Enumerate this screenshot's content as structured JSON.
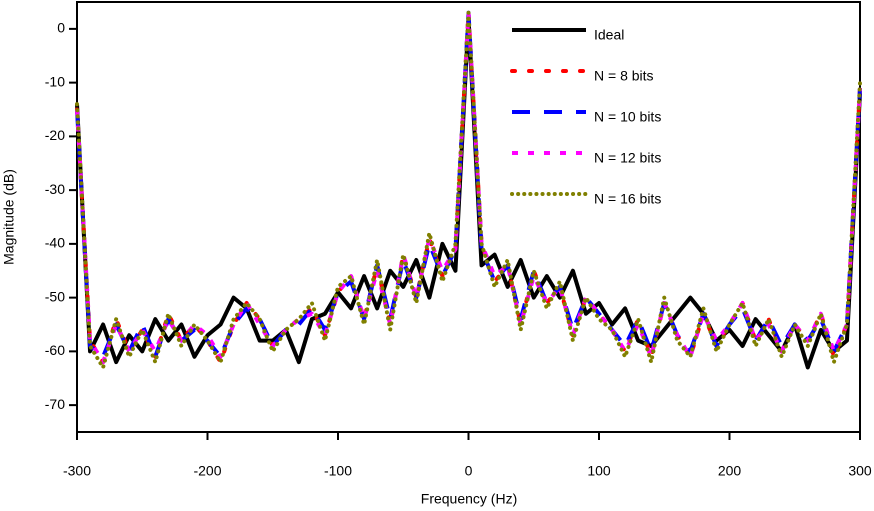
{
  "chart_data": {
    "type": "line",
    "xlabel": "Frequency (Hz)",
    "ylabel": "Magnitude (dB)",
    "x": [
      -300,
      -290,
      -280,
      -270,
      -260,
      -250,
      -240,
      -230,
      -220,
      -210,
      -200,
      -190,
      -180,
      -170,
      -160,
      -150,
      -140,
      -130,
      -120,
      -110,
      -100,
      -90,
      -80,
      -70,
      -60,
      -50,
      -40,
      -30,
      -20,
      -10,
      0,
      10,
      20,
      30,
      40,
      50,
      60,
      70,
      80,
      90,
      100,
      110,
      120,
      130,
      140,
      150,
      160,
      170,
      180,
      190,
      200,
      210,
      220,
      230,
      240,
      250,
      260,
      270,
      280,
      290,
      300
    ],
    "xlim": [
      -300,
      300
    ],
    "xticks": [
      -300,
      -200,
      -100,
      0,
      100,
      200,
      300
    ],
    "ylim": [
      -75,
      5
    ],
    "yticks": [
      0,
      -10,
      -20,
      -30,
      -40,
      -50,
      -60,
      -70
    ],
    "legend": "upper right",
    "series": [
      {
        "name": "Ideal",
        "color": "#000000",
        "style": "solid",
        "values": [
          -14,
          -60,
          -55,
          -62,
          -57,
          -60,
          -54,
          -58,
          -55,
          -61,
          -57,
          -55,
          -50,
          -52,
          -58,
          -58,
          -56,
          -62,
          -54,
          -53,
          -49,
          -52,
          -46,
          -52,
          -45,
          -48,
          -43,
          -50,
          -40,
          -45,
          2,
          -44,
          -42,
          -48,
          -43,
          -50,
          -46,
          -50,
          -45,
          -53,
          -51,
          -55,
          -52,
          -58,
          -59,
          -56,
          -53,
          -50,
          -53,
          -58,
          -56,
          -59,
          -54,
          -57,
          -60,
          -55,
          -63,
          -56,
          -60,
          -58,
          -12
        ]
      },
      {
        "name": "N = 8 bits",
        "color": "#ff0000",
        "style": "dotted",
        "values": [
          -15,
          -58,
          -62,
          -54,
          -60,
          -56,
          -61,
          -53,
          -58,
          -55,
          -58,
          -62,
          -55,
          -51,
          -54,
          -59,
          -56,
          -54,
          -52,
          -57,
          -49,
          -46,
          -54,
          -44,
          -55,
          -42,
          -50,
          -39,
          -46,
          -41,
          3,
          -40,
          -47,
          -44,
          -55,
          -45,
          -51,
          -48,
          -57,
          -50,
          -53,
          -56,
          -60,
          -54,
          -61,
          -51,
          -57,
          -61,
          -53,
          -59,
          -55,
          -51,
          -58,
          -54,
          -60,
          -55,
          -58,
          -53,
          -61,
          -55,
          -11
        ]
      },
      {
        "name": "N = 10 bits",
        "color": "#0000ff",
        "style": "dashed",
        "values": [
          -15,
          -59,
          -61,
          -55,
          -60,
          -55,
          -61,
          -54,
          -58,
          -56,
          -58,
          -61,
          -55,
          -52,
          -54,
          -59,
          -56,
          -55,
          -52,
          -56,
          -49,
          -47,
          -54,
          -44,
          -54,
          -43,
          -50,
          -40,
          -46,
          -41,
          3,
          -41,
          -47,
          -44,
          -54,
          -45,
          -51,
          -48,
          -56,
          -50,
          -53,
          -56,
          -59,
          -54,
          -60,
          -51,
          -57,
          -60,
          -53,
          -59,
          -55,
          -52,
          -58,
          -54,
          -59,
          -55,
          -58,
          -54,
          -60,
          -55,
          -11
        ]
      },
      {
        "name": "N = 12 bits",
        "color": "#ff00ff",
        "style": "dashdot",
        "values": [
          -15,
          -58,
          -62,
          -55,
          -60,
          -56,
          -60,
          -54,
          -58,
          -55,
          -57,
          -61,
          -55,
          -51,
          -55,
          -59,
          -56,
          -54,
          -53,
          -57,
          -49,
          -46,
          -54,
          -45,
          -55,
          -42,
          -50,
          -39,
          -45,
          -41,
          3,
          -40,
          -46,
          -44,
          -55,
          -46,
          -51,
          -48,
          -57,
          -50,
          -53,
          -56,
          -60,
          -55,
          -61,
          -51,
          -57,
          -61,
          -53,
          -58,
          -55,
          -51,
          -58,
          -55,
          -60,
          -55,
          -58,
          -53,
          -60,
          -55,
          -11
        ]
      },
      {
        "name": "N = 16 bits",
        "color": "#808000",
        "style": "dots",
        "values": [
          -14,
          -59,
          -63,
          -54,
          -61,
          -56,
          -62,
          -53,
          -59,
          -55,
          -58,
          -62,
          -54,
          -51,
          -54,
          -60,
          -56,
          -54,
          -51,
          -58,
          -48,
          -46,
          -55,
          -43,
          -56,
          -42,
          -51,
          -38,
          -47,
          -40,
          3,
          -40,
          -48,
          -43,
          -56,
          -45,
          -52,
          -47,
          -58,
          -50,
          -54,
          -56,
          -61,
          -54,
          -62,
          -50,
          -58,
          -61,
          -52,
          -60,
          -55,
          -51,
          -59,
          -54,
          -61,
          -55,
          -59,
          -53,
          -62,
          -55,
          -10
        ]
      }
    ]
  }
}
